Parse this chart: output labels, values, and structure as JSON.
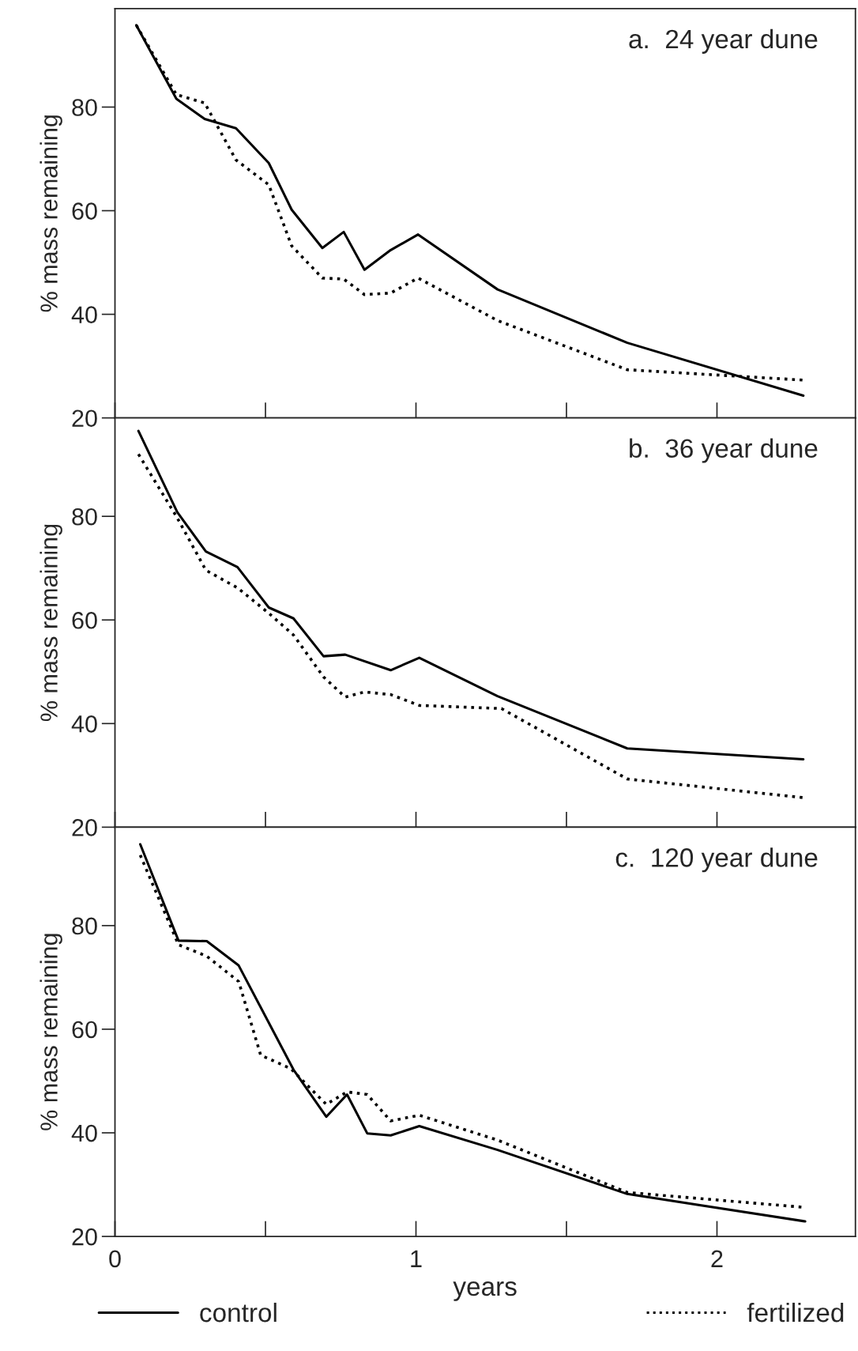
{
  "chart_data": [
    {
      "type": "line",
      "title": "a.  24 year dune",
      "ylabel": "% mass remaining",
      "xlim": [
        0,
        2.46
      ],
      "ylim": [
        20,
        99
      ],
      "xticks": [
        0,
        1,
        2
      ],
      "yticks": [
        20,
        40,
        60,
        80
      ],
      "tick_labels": "y",
      "grid": false,
      "legend": "bottom",
      "marker": "none",
      "series": [
        {
          "name": "control",
          "color": "#000000",
          "line_style": "solid",
          "x": [
            0.071,
            0.204,
            0.298,
            0.402,
            0.511,
            0.587,
            0.689,
            0.76,
            0.829,
            0.916,
            1.007,
            1.271,
            1.702,
            2.287
          ],
          "values": [
            95.8,
            81.6,
            77.7,
            75.9,
            69.2,
            60.2,
            52.8,
            55.9,
            48.6,
            52.4,
            55.4,
            44.8,
            34.5,
            24.3
          ]
        },
        {
          "name": "fertilized",
          "color": "#000000",
          "line_style": "dotted",
          "x": [
            0.071,
            0.204,
            0.298,
            0.402,
            0.511,
            0.587,
            0.689,
            0.76,
            0.829,
            0.916,
            1.007,
            1.271,
            1.702,
            2.287
          ],
          "values": [
            95.8,
            82.4,
            80.8,
            69.8,
            65.0,
            53.2,
            47.0,
            46.8,
            43.8,
            44.1,
            47.0,
            38.8,
            29.3,
            27.3
          ]
        }
      ]
    },
    {
      "type": "line",
      "title": "b.  36 year dune",
      "ylabel": "% mass remaining",
      "xlim": [
        0,
        2.46
      ],
      "ylim": [
        20,
        99
      ],
      "xticks": [
        0,
        1,
        2
      ],
      "yticks": [
        20,
        40,
        60,
        80
      ],
      "tick_labels": "y",
      "grid": false,
      "legend": false,
      "marker": "none",
      "series": [
        {
          "name": "control",
          "color": "#000000",
          "line_style": "solid",
          "x": [
            0.078,
            0.207,
            0.302,
            0.407,
            0.511,
            0.593,
            0.693,
            0.765,
            0.916,
            1.011,
            1.271,
            1.702,
            2.287
          ],
          "values": [
            96.5,
            80.8,
            73.2,
            70.2,
            62.4,
            60.3,
            53.0,
            53.3,
            50.3,
            52.7,
            45.3,
            35.2,
            33.1
          ]
        },
        {
          "name": "fertilized",
          "color": "#000000",
          "line_style": "dotted",
          "x": [
            0.078,
            0.207,
            0.302,
            0.407,
            0.511,
            0.593,
            0.693,
            0.765,
            0.829,
            0.916,
            1.011,
            1.284,
            1.702,
            2.287
          ],
          "values": [
            92.0,
            79.7,
            69.6,
            66.2,
            61.3,
            57.1,
            49.0,
            45.1,
            46.1,
            45.6,
            43.5,
            42.9,
            29.3,
            25.7
          ]
        }
      ]
    },
    {
      "type": "line",
      "title": "c.  120 year dune",
      "ylabel": "% mass remaining",
      "xlabel": "years",
      "xlim": [
        0,
        2.46
      ],
      "ylim": [
        20,
        99
      ],
      "xticks": [
        0,
        1,
        2
      ],
      "yticks": [
        20,
        40,
        60,
        80
      ],
      "grid": false,
      "legend": false,
      "marker": "none",
      "series": [
        {
          "name": "control",
          "color": "#000000",
          "line_style": "solid",
          "x": [
            0.084,
            0.211,
            0.305,
            0.411,
            0.593,
            0.702,
            0.771,
            0.838,
            0.916,
            1.011,
            1.271,
            1.702,
            2.293
          ],
          "values": [
            95.7,
            77.1,
            77.0,
            72.3,
            52.2,
            43.1,
            47.4,
            39.9,
            39.5,
            41.3,
            36.7,
            28.2,
            22.9
          ]
        },
        {
          "name": "fertilized",
          "color": "#000000",
          "line_style": "dotted",
          "x": [
            0.084,
            0.211,
            0.305,
            0.411,
            0.484,
            0.584,
            0.702,
            0.771,
            0.838,
            0.916,
            1.011,
            1.271,
            1.702,
            2.293
          ],
          "values": [
            93.6,
            76.3,
            74.1,
            69.2,
            55.0,
            52.4,
            45.5,
            47.9,
            47.4,
            42.3,
            43.4,
            38.6,
            28.5,
            25.6
          ]
        }
      ]
    }
  ]
}
